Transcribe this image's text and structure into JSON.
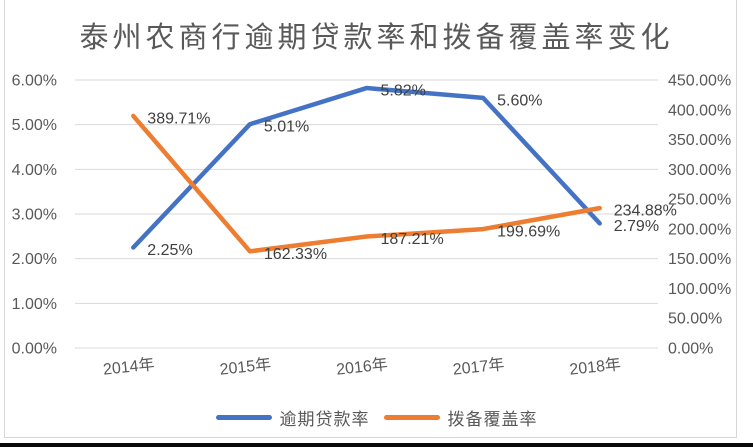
{
  "title": "泰州农商行逾期贷款率和拨备覆盖率变化",
  "colors": {
    "series_blue": "#4472C4",
    "series_orange": "#ED7D31",
    "gridline": "#D9D9D9",
    "axis_text": "#595959",
    "data_label_text": "#404040",
    "title_text": "#595959"
  },
  "chart_data": {
    "type": "line",
    "title": "泰州农商行逾期贷款率和拨备覆盖率变化",
    "categories": [
      "2014年",
      "2015年",
      "2016年",
      "2017年",
      "2018年"
    ],
    "series": [
      {
        "name": "逾期贷款率",
        "axis": "left",
        "color": "#4472C4",
        "values": [
          2.25,
          5.01,
          5.82,
          5.6,
          2.79
        ],
        "labels": [
          "2.25%",
          "5.01%",
          "5.82%",
          "5.60%",
          "2.79%"
        ]
      },
      {
        "name": "拨备覆盖率",
        "axis": "right",
        "color": "#ED7D31",
        "values": [
          389.71,
          162.33,
          187.21,
          199.69,
          234.88
        ],
        "labels": [
          "389.71%",
          "162.33%",
          "187.21%",
          "199.69%",
          "234.88%"
        ]
      }
    ],
    "left_axis": {
      "min": 0,
      "max": 6,
      "step": 1,
      "tick_labels": [
        "0.00%",
        "1.00%",
        "2.00%",
        "3.00%",
        "4.00%",
        "5.00%",
        "6.00%"
      ]
    },
    "right_axis": {
      "min": 0,
      "max": 450,
      "step": 50,
      "tick_labels": [
        "0.00%",
        "50.00%",
        "100.00%",
        "150.00%",
        "200.00%",
        "250.00%",
        "300.00%",
        "350.00%",
        "400.00%",
        "450.00%"
      ]
    },
    "grid": true,
    "legend_position": "bottom"
  }
}
